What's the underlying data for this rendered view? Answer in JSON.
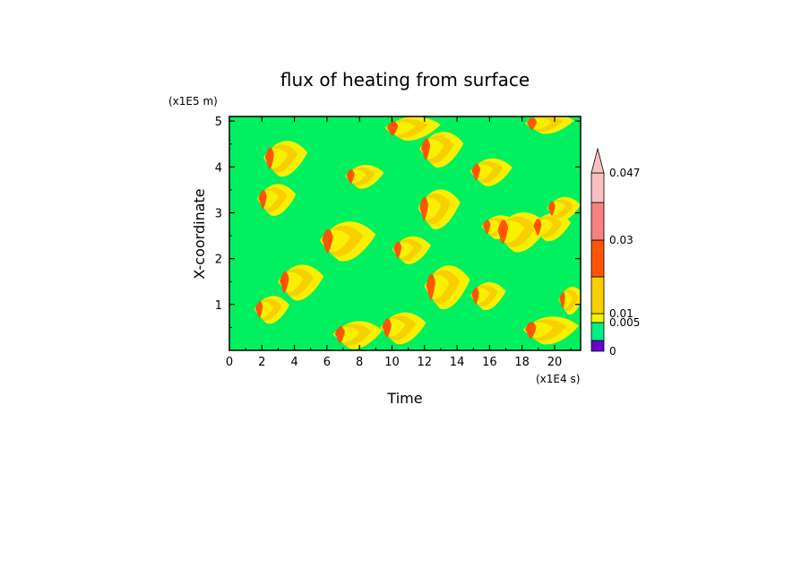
{
  "chart_data": {
    "type": "heatmap",
    "title": "flux of heating from surface",
    "xlabel": "Time",
    "ylabel": "X-coordinate",
    "x_unit": "(x1E4 s)",
    "y_unit": "(x1E5 m)",
    "xlim": [
      0,
      21.6
    ],
    "ylim": [
      0,
      5.1
    ],
    "x_ticks": [
      "0",
      "2",
      "4",
      "6",
      "8",
      "10",
      "12",
      "14",
      "16",
      "18",
      "20"
    ],
    "y_ticks": [
      "1",
      "2",
      "3",
      "4",
      "5"
    ],
    "colorbar": {
      "levels": [
        {
          "color": "#6a00c8",
          "label": "0"
        },
        {
          "color": "#00ee88",
          "label": "0.005"
        },
        {
          "color": "#f8f000",
          "label": "0.01"
        },
        {
          "color": "#f8d000",
          "label": ""
        },
        {
          "color": "#ff5500",
          "label": "0.03"
        },
        {
          "color": "#f88080",
          "label": ""
        },
        {
          "color": "#f8c0c0",
          "label": "0.047"
        }
      ],
      "extend": "max"
    },
    "background_color": "#00f060",
    "blobs": [
      {
        "t": 2.3,
        "x": 4.2,
        "len": 2.5,
        "hw": 0.45
      },
      {
        "t": 1.9,
        "x": 3.3,
        "len": 2.2,
        "hw": 0.4
      },
      {
        "t": 3.2,
        "x": 1.5,
        "len": 2.6,
        "hw": 0.45
      },
      {
        "t": 1.7,
        "x": 0.9,
        "len": 2.0,
        "hw": 0.35
      },
      {
        "t": 6.6,
        "x": 0.35,
        "len": 2.8,
        "hw": 0.35
      },
      {
        "t": 7.3,
        "x": 3.8,
        "len": 2.2,
        "hw": 0.3
      },
      {
        "t": 5.8,
        "x": 2.4,
        "len": 3.2,
        "hw": 0.5
      },
      {
        "t": 9.8,
        "x": 4.85,
        "len": 3.2,
        "hw": 0.3
      },
      {
        "t": 10.2,
        "x": 2.2,
        "len": 2.2,
        "hw": 0.35
      },
      {
        "t": 9.5,
        "x": 0.5,
        "len": 2.6,
        "hw": 0.4
      },
      {
        "t": 11.9,
        "x": 4.4,
        "len": 2.5,
        "hw": 0.45
      },
      {
        "t": 11.8,
        "x": 3.1,
        "len": 2.4,
        "hw": 0.5
      },
      {
        "t": 12.2,
        "x": 1.4,
        "len": 2.6,
        "hw": 0.55
      },
      {
        "t": 15.0,
        "x": 3.9,
        "len": 2.4,
        "hw": 0.35
      },
      {
        "t": 15.7,
        "x": 2.7,
        "len": 2.0,
        "hw": 0.3
      },
      {
        "t": 15.0,
        "x": 1.2,
        "len": 2.0,
        "hw": 0.35
      },
      {
        "t": 16.6,
        "x": 2.6,
        "len": 3.0,
        "hw": 0.5
      },
      {
        "t": 18.4,
        "x": 4.95,
        "len": 2.8,
        "hw": 0.25
      },
      {
        "t": 18.8,
        "x": 2.7,
        "len": 2.2,
        "hw": 0.35
      },
      {
        "t": 18.3,
        "x": 0.45,
        "len": 3.2,
        "hw": 0.35
      },
      {
        "t": 20.4,
        "x": 1.1,
        "len": 1.4,
        "hw": 0.35
      },
      {
        "t": 19.7,
        "x": 3.1,
        "len": 1.9,
        "hw": 0.3
      }
    ]
  }
}
